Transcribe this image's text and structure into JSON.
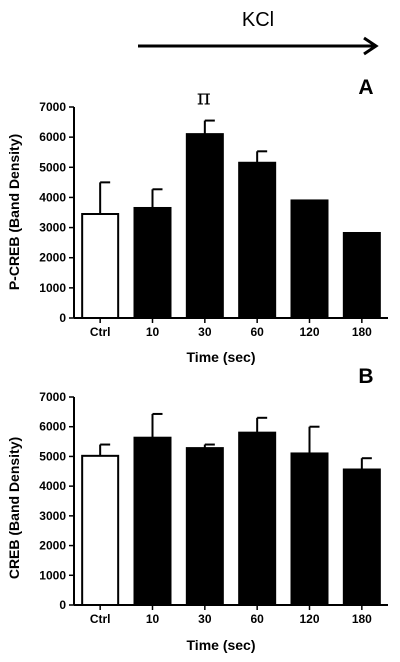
{
  "annotation": {
    "stimulus_label": "KCl"
  },
  "chart_data": [
    {
      "type": "bar",
      "panel_label": "A",
      "categories": [
        "Ctrl",
        "10",
        "30",
        "60",
        "120",
        "180"
      ],
      "values": [
        3450,
        3650,
        6100,
        5150,
        3900,
        2820
      ],
      "errors": [
        1050,
        620,
        450,
        380,
        0,
        0
      ],
      "bar_colors": [
        "#ffffff",
        "#000000",
        "#000000",
        "#000000",
        "#000000",
        "#000000"
      ],
      "significance": {
        "category": "30",
        "symbol": "π"
      },
      "xlabel": "Time (sec)",
      "ylabel": "P-CREB (Band Density)",
      "ylim": [
        0,
        7000
      ],
      "yticks": [
        0,
        1000,
        2000,
        3000,
        4000,
        5000,
        6000,
        7000
      ],
      "grid": false
    },
    {
      "type": "bar",
      "panel_label": "B",
      "categories": [
        "Ctrl",
        "10",
        "30",
        "60",
        "120",
        "180"
      ],
      "values": [
        5020,
        5630,
        5280,
        5800,
        5100,
        4560
      ],
      "errors": [
        380,
        800,
        120,
        500,
        900,
        380
      ],
      "bar_colors": [
        "#ffffff",
        "#000000",
        "#000000",
        "#000000",
        "#000000",
        "#000000"
      ],
      "xlabel": "Time (sec)",
      "ylabel": "CREB (Band Density)",
      "ylim": [
        0,
        7000
      ],
      "yticks": [
        0,
        1000,
        2000,
        3000,
        4000,
        5000,
        6000,
        7000
      ],
      "grid": false
    }
  ]
}
